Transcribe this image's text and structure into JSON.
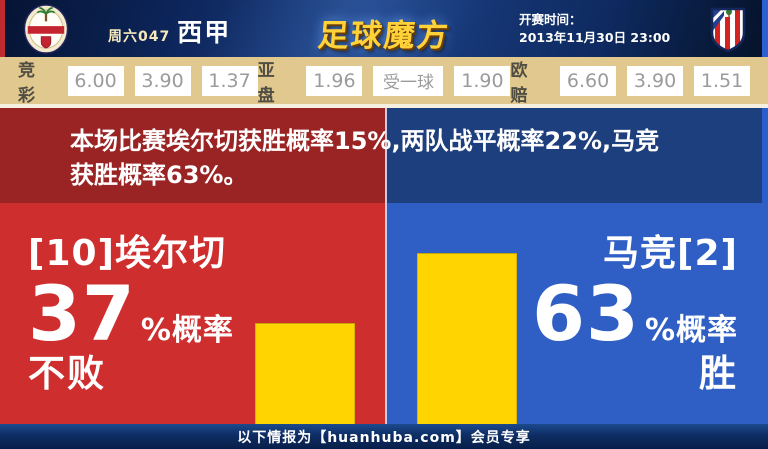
{
  "header": {
    "match_no": "周六047",
    "league": "西甲",
    "logo_text": "足球魔方",
    "kickoff_label": "开赛时间：",
    "kickoff_time": "2013年11月30日 23:00"
  },
  "odds": {
    "groups": [
      {
        "label": "竞彩",
        "values": [
          "6.00",
          "3.90",
          "1.37"
        ]
      },
      {
        "label": "亚盘",
        "values": [
          "1.96",
          "受一球",
          "1.90"
        ]
      },
      {
        "label": "欧赔",
        "values": [
          "6.60",
          "3.90",
          "1.51"
        ]
      }
    ]
  },
  "summary": {
    "text": "本场比赛埃尔切获胜概率15%,两队战平概率22%,马竞获胜概率63%。"
  },
  "home_panel": {
    "team": "[10]埃尔切",
    "probability": "37",
    "prob_suffix": "%概率",
    "outcome": "不败",
    "bar_percent": 37
  },
  "away_panel": {
    "team": "马竞[2]",
    "probability": "63",
    "prob_suffix": "%概率",
    "outcome": "胜",
    "bar_percent": 63
  },
  "footer": {
    "text": "以下情报为【huanhuba.com】会员专享"
  },
  "colors": {
    "bar_yellow": "#ffd400",
    "home_red": "#cf2e2e",
    "away_blue": "#2f5fc5",
    "summary_red": "#9a2323",
    "summary_blue": "#1e3f7e",
    "odds_bg": "#e0c88e",
    "footer_navy": "#0e2d63"
  },
  "chart_data": {
    "type": "bar",
    "categories": [
      "[10]埃尔切 不败",
      "马竞[2] 胜"
    ],
    "values": [
      37,
      63
    ],
    "unit": "%",
    "ylim": [
      0,
      100
    ]
  }
}
